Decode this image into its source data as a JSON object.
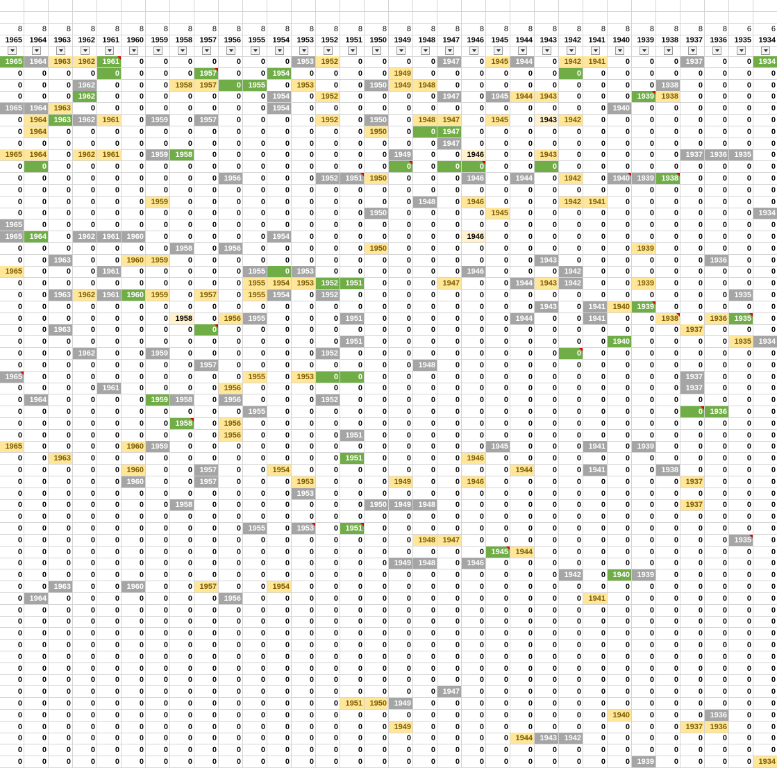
{
  "sheet": {
    "columns": [
      {
        "year": "1965",
        "count": "8"
      },
      {
        "year": "1964",
        "count": "8"
      },
      {
        "year": "1963",
        "count": "8"
      },
      {
        "year": "1962",
        "count": "8"
      },
      {
        "year": "1961",
        "count": "8"
      },
      {
        "year": "1960",
        "count": "8"
      },
      {
        "year": "1959",
        "count": "8"
      },
      {
        "year": "1958",
        "count": "8"
      },
      {
        "year": "1957",
        "count": "8"
      },
      {
        "year": "1956",
        "count": "8"
      },
      {
        "year": "1955",
        "count": "8"
      },
      {
        "year": "1954",
        "count": "8"
      },
      {
        "year": "1953",
        "count": "8"
      },
      {
        "year": "1952",
        "count": "8"
      },
      {
        "year": "1951",
        "count": "8"
      },
      {
        "year": "1950",
        "count": "8"
      },
      {
        "year": "1949",
        "count": "8"
      },
      {
        "year": "1948",
        "count": "8"
      },
      {
        "year": "1947",
        "count": "8"
      },
      {
        "year": "1946",
        "count": "8"
      },
      {
        "year": "1945",
        "count": "8"
      },
      {
        "year": "1944",
        "count": "8"
      },
      {
        "year": "1943",
        "count": "8"
      },
      {
        "year": "1942",
        "count": "8"
      },
      {
        "year": "1941",
        "count": "8"
      },
      {
        "year": "1940",
        "count": "8"
      },
      {
        "year": "1939",
        "count": "8"
      },
      {
        "year": "1938",
        "count": "8"
      },
      {
        "year": "1937",
        "count": "8"
      },
      {
        "year": "1936",
        "count": "8"
      },
      {
        "year": "1935",
        "count": "6"
      },
      {
        "year": "1934",
        "count": "6"
      }
    ],
    "filter_icon": "filter-dropdown-icon",
    "colors": {
      "green": "#70ad47",
      "gray": "#a5a5a5",
      "yellow": "#ffe699",
      "light_yellow": "#fff2cc",
      "comment_marker": "#e00000"
    },
    "row_count": 61,
    "highlights": [
      {
        "r": 0,
        "c": 0,
        "s": "g"
      },
      {
        "r": 0,
        "c": 1,
        "s": "k"
      },
      {
        "r": 0,
        "c": 2,
        "s": "y"
      },
      {
        "r": 0,
        "c": 3,
        "s": "y"
      },
      {
        "r": 0,
        "c": 4,
        "s": "g",
        "m": 1
      },
      {
        "r": 0,
        "c": 12,
        "s": "k"
      },
      {
        "r": 0,
        "c": 13,
        "s": "y"
      },
      {
        "r": 0,
        "c": 18,
        "s": "k"
      },
      {
        "r": 0,
        "c": 20,
        "s": "y"
      },
      {
        "r": 0,
        "c": 21,
        "s": "k"
      },
      {
        "r": 0,
        "c": 23,
        "s": "y"
      },
      {
        "r": 0,
        "c": 24,
        "s": "y"
      },
      {
        "r": 0,
        "c": 28,
        "s": "k"
      },
      {
        "r": 0,
        "c": 31,
        "s": "g"
      },
      {
        "r": 1,
        "c": 4,
        "s": "g",
        "z": 1
      },
      {
        "r": 1,
        "c": 8,
        "s": "g",
        "m": 1
      },
      {
        "r": 1,
        "c": 11,
        "s": "g"
      },
      {
        "r": 1,
        "c": 16,
        "s": "y"
      },
      {
        "r": 1,
        "c": 23,
        "s": "g",
        "z": 1
      },
      {
        "r": 2,
        "c": 3,
        "s": "k"
      },
      {
        "r": 2,
        "c": 7,
        "s": "y"
      },
      {
        "r": 2,
        "c": 8,
        "s": "y"
      },
      {
        "r": 2,
        "c": 9,
        "s": "g",
        "z": 1
      },
      {
        "r": 2,
        "c": 10,
        "s": "g"
      },
      {
        "r": 2,
        "c": 12,
        "s": "y"
      },
      {
        "r": 2,
        "c": 15,
        "s": "k"
      },
      {
        "r": 2,
        "c": 16,
        "s": "y"
      },
      {
        "r": 2,
        "c": 17,
        "s": "y"
      },
      {
        "r": 2,
        "c": 27,
        "s": "k"
      },
      {
        "r": 3,
        "c": 3,
        "s": "g"
      },
      {
        "r": 3,
        "c": 11,
        "s": "k"
      },
      {
        "r": 3,
        "c": 13,
        "s": "y"
      },
      {
        "r": 3,
        "c": 18,
        "s": "k"
      },
      {
        "r": 3,
        "c": 20,
        "s": "k"
      },
      {
        "r": 3,
        "c": 21,
        "s": "y"
      },
      {
        "r": 3,
        "c": 22,
        "s": "y"
      },
      {
        "r": 3,
        "c": 26,
        "s": "g",
        "m": 1
      },
      {
        "r": 3,
        "c": 27,
        "s": "y"
      },
      {
        "r": 4,
        "c": 0,
        "s": "k"
      },
      {
        "r": 4,
        "c": 1,
        "s": "k"
      },
      {
        "r": 4,
        "c": 2,
        "s": "y"
      },
      {
        "r": 4,
        "c": 11,
        "s": "k"
      },
      {
        "r": 4,
        "c": 25,
        "s": "k"
      },
      {
        "r": 5,
        "c": 1,
        "s": "y"
      },
      {
        "r": 5,
        "c": 2,
        "s": "g"
      },
      {
        "r": 5,
        "c": 3,
        "s": "k"
      },
      {
        "r": 5,
        "c": 4,
        "s": "y"
      },
      {
        "r": 5,
        "c": 6,
        "s": "k"
      },
      {
        "r": 5,
        "c": 8,
        "s": "k"
      },
      {
        "r": 5,
        "c": 13,
        "s": "y"
      },
      {
        "r": 5,
        "c": 15,
        "s": "k"
      },
      {
        "r": 5,
        "c": 17,
        "s": "y"
      },
      {
        "r": 5,
        "c": 18,
        "s": "y"
      },
      {
        "r": 5,
        "c": 20,
        "s": "y"
      },
      {
        "r": 5,
        "c": 22,
        "s": "l"
      },
      {
        "r": 5,
        "c": 23,
        "s": "y"
      },
      {
        "r": 6,
        "c": 1,
        "s": "y"
      },
      {
        "r": 6,
        "c": 15,
        "s": "y"
      },
      {
        "r": 6,
        "c": 17,
        "s": "g",
        "z": 1
      },
      {
        "r": 6,
        "c": 18,
        "s": "g"
      },
      {
        "r": 7,
        "c": 18,
        "s": "k"
      },
      {
        "r": 8,
        "c": 0,
        "s": "y"
      },
      {
        "r": 8,
        "c": 1,
        "s": "y"
      },
      {
        "r": 8,
        "c": 3,
        "s": "y"
      },
      {
        "r": 8,
        "c": 4,
        "s": "y"
      },
      {
        "r": 8,
        "c": 6,
        "s": "k"
      },
      {
        "r": 8,
        "c": 7,
        "s": "g"
      },
      {
        "r": 8,
        "c": 16,
        "s": "k"
      },
      {
        "r": 8,
        "c": 19,
        "s": "l"
      },
      {
        "r": 8,
        "c": 22,
        "s": "y"
      },
      {
        "r": 8,
        "c": 28,
        "s": "k"
      },
      {
        "r": 8,
        "c": 29,
        "s": "k"
      },
      {
        "r": 8,
        "c": 30,
        "s": "k"
      },
      {
        "r": 9,
        "c": 1,
        "s": "g",
        "z": 1
      },
      {
        "r": 9,
        "c": 16,
        "s": "g",
        "z": 1,
        "m": 1
      },
      {
        "r": 9,
        "c": 18,
        "s": "g",
        "z": 1
      },
      {
        "r": 9,
        "c": 19,
        "s": "g",
        "z": 1,
        "m": 1
      },
      {
        "r": 9,
        "c": 22,
        "s": "g",
        "z": 1
      },
      {
        "r": 10,
        "c": 9,
        "s": "k"
      },
      {
        "r": 10,
        "c": 13,
        "s": "k"
      },
      {
        "r": 10,
        "c": 14,
        "s": "k",
        "m": 1
      },
      {
        "r": 10,
        "c": 15,
        "s": "y"
      },
      {
        "r": 10,
        "c": 19,
        "s": "k"
      },
      {
        "r": 10,
        "c": 21,
        "s": "k"
      },
      {
        "r": 10,
        "c": 23,
        "s": "y"
      },
      {
        "r": 10,
        "c": 25,
        "s": "k",
        "m": 1
      },
      {
        "r": 10,
        "c": 26,
        "s": "k"
      },
      {
        "r": 10,
        "c": 27,
        "s": "g",
        "m": 1
      },
      {
        "r": 12,
        "c": 6,
        "s": "y"
      },
      {
        "r": 12,
        "c": 17,
        "s": "k"
      },
      {
        "r": 12,
        "c": 19,
        "s": "y"
      },
      {
        "r": 12,
        "c": 23,
        "s": "y"
      },
      {
        "r": 12,
        "c": 24,
        "s": "y"
      },
      {
        "r": 13,
        "c": 15,
        "s": "k"
      },
      {
        "r": 13,
        "c": 20,
        "s": "y"
      },
      {
        "r": 13,
        "c": 31,
        "s": "k"
      },
      {
        "r": 14,
        "c": 0,
        "s": "k"
      },
      {
        "r": 15,
        "c": 0,
        "s": "k"
      },
      {
        "r": 15,
        "c": 1,
        "s": "g"
      },
      {
        "r": 15,
        "c": 3,
        "s": "k"
      },
      {
        "r": 15,
        "c": 4,
        "s": "k"
      },
      {
        "r": 15,
        "c": 5,
        "s": "k"
      },
      {
        "r": 15,
        "c": 11,
        "s": "k"
      },
      {
        "r": 15,
        "c": 19,
        "s": "l"
      },
      {
        "r": 16,
        "c": 7,
        "s": "k"
      },
      {
        "r": 16,
        "c": 9,
        "s": "k"
      },
      {
        "r": 16,
        "c": 15,
        "s": "y"
      },
      {
        "r": 16,
        "c": 26,
        "s": "y"
      },
      {
        "r": 17,
        "c": 2,
        "s": "k"
      },
      {
        "r": 17,
        "c": 5,
        "s": "y"
      },
      {
        "r": 17,
        "c": 6,
        "s": "y"
      },
      {
        "r": 17,
        "c": 22,
        "s": "k"
      },
      {
        "r": 17,
        "c": 29,
        "s": "k"
      },
      {
        "r": 18,
        "c": 0,
        "s": "y"
      },
      {
        "r": 18,
        "c": 4,
        "s": "k"
      },
      {
        "r": 18,
        "c": 10,
        "s": "k"
      },
      {
        "r": 18,
        "c": 11,
        "s": "g",
        "z": 1
      },
      {
        "r": 18,
        "c": 12,
        "s": "k"
      },
      {
        "r": 18,
        "c": 19,
        "s": "k"
      },
      {
        "r": 18,
        "c": 23,
        "s": "k"
      },
      {
        "r": 19,
        "c": 10,
        "s": "y"
      },
      {
        "r": 19,
        "c": 11,
        "s": "y"
      },
      {
        "r": 19,
        "c": 12,
        "s": "y"
      },
      {
        "r": 19,
        "c": 13,
        "s": "g"
      },
      {
        "r": 19,
        "c": 14,
        "s": "g"
      },
      {
        "r": 19,
        "c": 18,
        "s": "y"
      },
      {
        "r": 19,
        "c": 21,
        "s": "k"
      },
      {
        "r": 19,
        "c": 22,
        "s": "y"
      },
      {
        "r": 19,
        "c": 23,
        "s": "k"
      },
      {
        "r": 19,
        "c": 26,
        "s": "y"
      },
      {
        "r": 20,
        "c": 2,
        "s": "k"
      },
      {
        "r": 20,
        "c": 3,
        "s": "y"
      },
      {
        "r": 20,
        "c": 4,
        "s": "k"
      },
      {
        "r": 20,
        "c": 5,
        "s": "g"
      },
      {
        "r": 20,
        "c": 6,
        "s": "y"
      },
      {
        "r": 20,
        "c": 8,
        "s": "y"
      },
      {
        "r": 20,
        "c": 10,
        "s": "y"
      },
      {
        "r": 20,
        "c": 11,
        "s": "k"
      },
      {
        "r": 20,
        "c": 13,
        "s": "k"
      },
      {
        "r": 20,
        "c": 30,
        "s": "k"
      },
      {
        "r": 21,
        "c": 22,
        "s": "k"
      },
      {
        "r": 21,
        "c": 24,
        "s": "k"
      },
      {
        "r": 21,
        "c": 25,
        "s": "y"
      },
      {
        "r": 21,
        "c": 26,
        "s": "g",
        "m": 1
      },
      {
        "r": 22,
        "c": 7,
        "s": "l"
      },
      {
        "r": 22,
        "c": 9,
        "s": "y"
      },
      {
        "r": 22,
        "c": 10,
        "s": "k"
      },
      {
        "r": 22,
        "c": 14,
        "s": "k"
      },
      {
        "r": 22,
        "c": 21,
        "s": "k"
      },
      {
        "r": 22,
        "c": 24,
        "s": "k"
      },
      {
        "r": 22,
        "c": 27,
        "s": "y",
        "m": 1
      },
      {
        "r": 22,
        "c": 29,
        "s": "y"
      },
      {
        "r": 22,
        "c": 30,
        "s": "g",
        "m": 1
      },
      {
        "r": 23,
        "c": 2,
        "s": "k"
      },
      {
        "r": 23,
        "c": 8,
        "s": "g",
        "z": 1,
        "m": 1
      },
      {
        "r": 23,
        "c": 28,
        "s": "y"
      },
      {
        "r": 24,
        "c": 14,
        "s": "k"
      },
      {
        "r": 24,
        "c": 25,
        "s": "g"
      },
      {
        "r": 24,
        "c": 30,
        "s": "y"
      },
      {
        "r": 24,
        "c": 31,
        "s": "k"
      },
      {
        "r": 25,
        "c": 3,
        "s": "k"
      },
      {
        "r": 25,
        "c": 6,
        "s": "k"
      },
      {
        "r": 25,
        "c": 13,
        "s": "k"
      },
      {
        "r": 25,
        "c": 23,
        "s": "g",
        "z": 1,
        "m": 1
      },
      {
        "r": 26,
        "c": 8,
        "s": "k"
      },
      {
        "r": 26,
        "c": 17,
        "s": "k"
      },
      {
        "r": 27,
        "c": 0,
        "s": "k",
        "m": 1
      },
      {
        "r": 27,
        "c": 10,
        "s": "y"
      },
      {
        "r": 27,
        "c": 12,
        "s": "y"
      },
      {
        "r": 27,
        "c": 13,
        "s": "g",
        "z": 1
      },
      {
        "r": 27,
        "c": 14,
        "s": "g",
        "z": 1
      },
      {
        "r": 27,
        "c": 28,
        "s": "k"
      },
      {
        "r": 28,
        "c": 4,
        "s": "k"
      },
      {
        "r": 28,
        "c": 9,
        "s": "y"
      },
      {
        "r": 28,
        "c": 28,
        "s": "k"
      },
      {
        "r": 29,
        "c": 1,
        "s": "k"
      },
      {
        "r": 29,
        "c": 6,
        "s": "g"
      },
      {
        "r": 29,
        "c": 7,
        "s": "k"
      },
      {
        "r": 29,
        "c": 9,
        "s": "k"
      },
      {
        "r": 29,
        "c": 13,
        "s": "k"
      },
      {
        "r": 30,
        "c": 10,
        "s": "k"
      },
      {
        "r": 30,
        "c": 28,
        "s": "g",
        "z": 1,
        "m": 1
      },
      {
        "r": 30,
        "c": 29,
        "s": "g"
      },
      {
        "r": 31,
        "c": 7,
        "s": "g",
        "m": 1
      },
      {
        "r": 31,
        "c": 9,
        "s": "y"
      },
      {
        "r": 32,
        "c": 9,
        "s": "y"
      },
      {
        "r": 32,
        "c": 14,
        "s": "k"
      },
      {
        "r": 33,
        "c": 0,
        "s": "y"
      },
      {
        "r": 33,
        "c": 5,
        "s": "y"
      },
      {
        "r": 33,
        "c": 6,
        "s": "k"
      },
      {
        "r": 33,
        "c": 20,
        "s": "k"
      },
      {
        "r": 33,
        "c": 24,
        "s": "k"
      },
      {
        "r": 33,
        "c": 26,
        "s": "k"
      },
      {
        "r": 34,
        "c": 2,
        "s": "y"
      },
      {
        "r": 34,
        "c": 14,
        "s": "g"
      },
      {
        "r": 34,
        "c": 19,
        "s": "y"
      },
      {
        "r": 35,
        "c": 5,
        "s": "y"
      },
      {
        "r": 35,
        "c": 8,
        "s": "k"
      },
      {
        "r": 35,
        "c": 11,
        "s": "y"
      },
      {
        "r": 35,
        "c": 21,
        "s": "y"
      },
      {
        "r": 35,
        "c": 24,
        "s": "k"
      },
      {
        "r": 35,
        "c": 27,
        "s": "k"
      },
      {
        "r": 36,
        "c": 5,
        "s": "k"
      },
      {
        "r": 36,
        "c": 8,
        "s": "k"
      },
      {
        "r": 36,
        "c": 12,
        "s": "y"
      },
      {
        "r": 36,
        "c": 16,
        "s": "y"
      },
      {
        "r": 36,
        "c": 19,
        "s": "y"
      },
      {
        "r": 36,
        "c": 28,
        "s": "y"
      },
      {
        "r": 37,
        "c": 12,
        "s": "k"
      },
      {
        "r": 38,
        "c": 7,
        "s": "k"
      },
      {
        "r": 38,
        "c": 15,
        "s": "k"
      },
      {
        "r": 38,
        "c": 16,
        "s": "k"
      },
      {
        "r": 38,
        "c": 17,
        "s": "k"
      },
      {
        "r": 38,
        "c": 28,
        "s": "y"
      },
      {
        "r": 40,
        "c": 10,
        "s": "k"
      },
      {
        "r": 40,
        "c": 12,
        "s": "k",
        "m": 1
      },
      {
        "r": 40,
        "c": 14,
        "s": "g",
        "m": 1
      },
      {
        "r": 41,
        "c": 17,
        "s": "y"
      },
      {
        "r": 41,
        "c": 18,
        "s": "y"
      },
      {
        "r": 41,
        "c": 30,
        "s": "k",
        "m": 1
      },
      {
        "r": 42,
        "c": 20,
        "s": "g",
        "m": 1
      },
      {
        "r": 42,
        "c": 21,
        "s": "y"
      },
      {
        "r": 43,
        "c": 16,
        "s": "k"
      },
      {
        "r": 43,
        "c": 17,
        "s": "k"
      },
      {
        "r": 43,
        "c": 19,
        "s": "k"
      },
      {
        "r": 44,
        "c": 23,
        "s": "k"
      },
      {
        "r": 44,
        "c": 25,
        "s": "g"
      },
      {
        "r": 44,
        "c": 26,
        "s": "k"
      },
      {
        "r": 45,
        "c": 2,
        "s": "k"
      },
      {
        "r": 45,
        "c": 5,
        "s": "k"
      },
      {
        "r": 45,
        "c": 8,
        "s": "y"
      },
      {
        "r": 45,
        "c": 11,
        "s": "y"
      },
      {
        "r": 46,
        "c": 1,
        "s": "k"
      },
      {
        "r": 46,
        "c": 9,
        "s": "k"
      },
      {
        "r": 46,
        "c": 24,
        "s": "y"
      },
      {
        "r": 54,
        "c": 18,
        "s": "k"
      },
      {
        "r": 55,
        "c": 14,
        "s": "y"
      },
      {
        "r": 55,
        "c": 15,
        "s": "y"
      },
      {
        "r": 55,
        "c": 16,
        "s": "k"
      },
      {
        "r": 56,
        "c": 25,
        "s": "y"
      },
      {
        "r": 56,
        "c": 29,
        "s": "k"
      },
      {
        "r": 57,
        "c": 16,
        "s": "y"
      },
      {
        "r": 57,
        "c": 28,
        "s": "y"
      },
      {
        "r": 57,
        "c": 29,
        "s": "y"
      },
      {
        "r": 58,
        "c": 21,
        "s": "y"
      },
      {
        "r": 58,
        "c": 22,
        "s": "k"
      },
      {
        "r": 58,
        "c": 23,
        "s": "k"
      },
      {
        "r": 60,
        "c": 26,
        "s": "k"
      },
      {
        "r": 60,
        "c": 31,
        "s": "y"
      }
    ]
  }
}
